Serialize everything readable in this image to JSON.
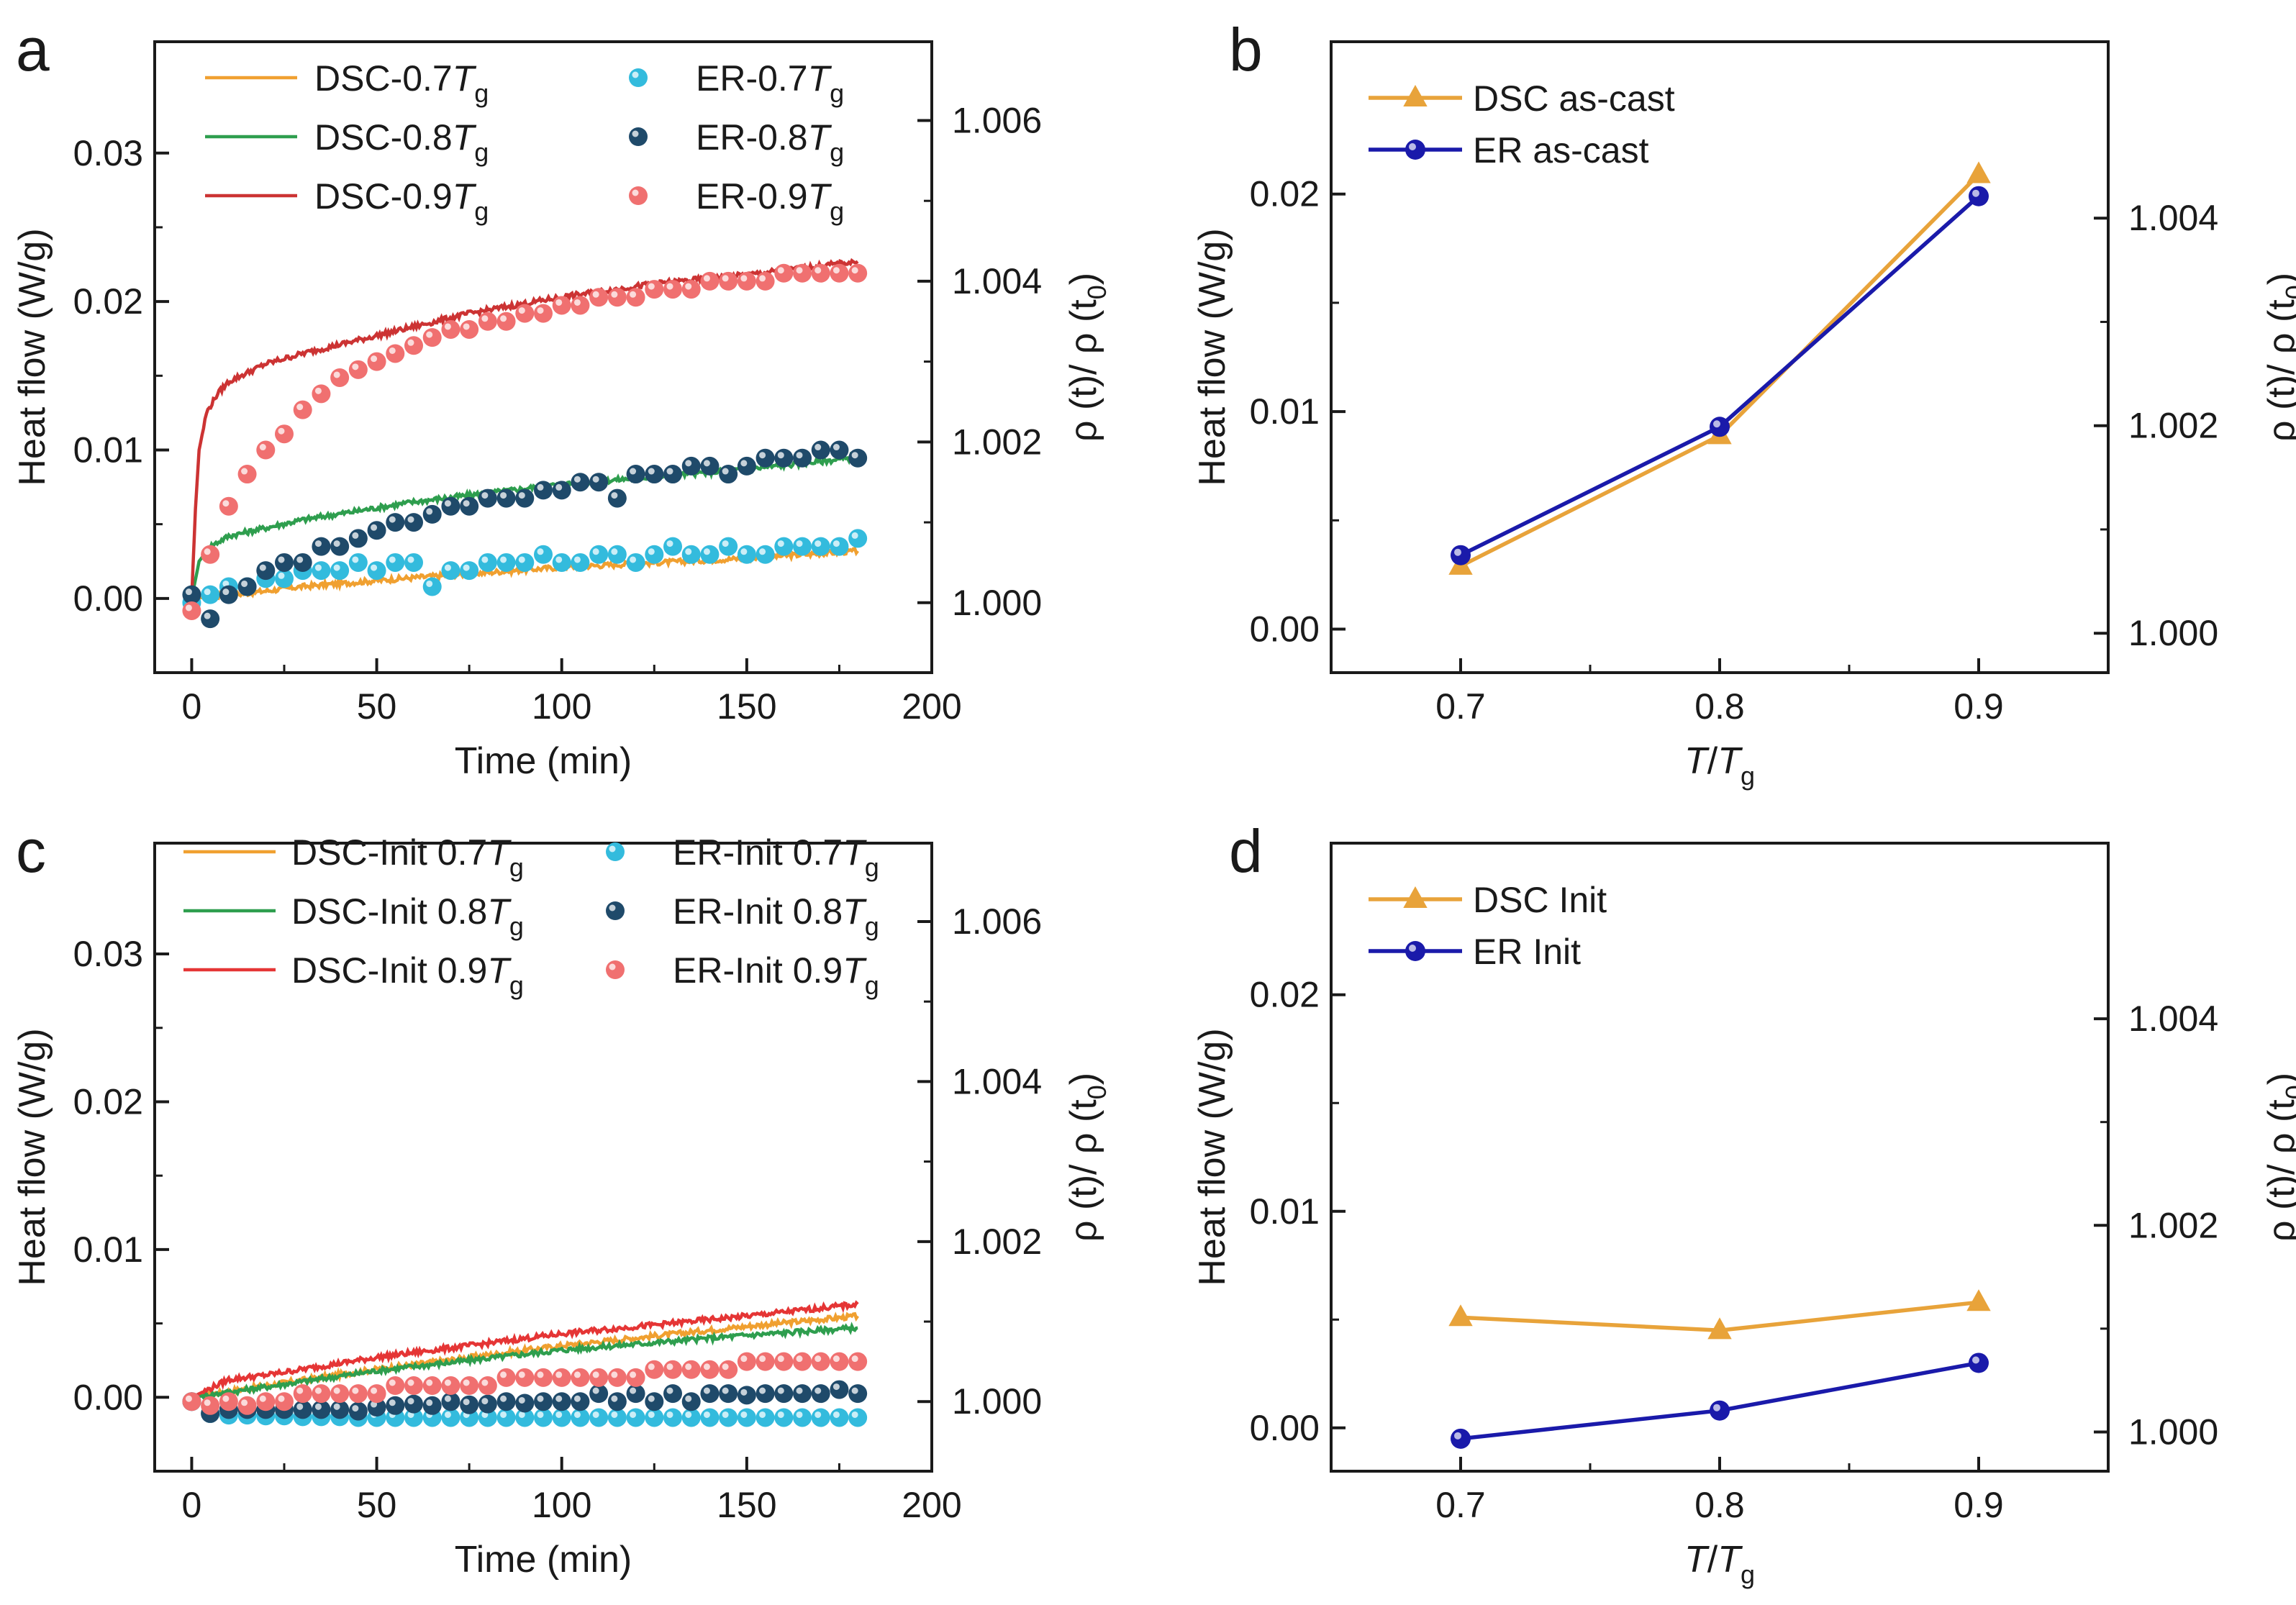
{
  "chart_data": [
    {
      "panel": "a",
      "type": "line+scatter",
      "xlabel": "Time (min)",
      "ylabel": "Heat flow (W/g)",
      "y2label": "ρ (t)/ ρ (t0)",
      "xlim": [
        -10,
        200
      ],
      "ylim": [
        -0.005,
        0.0375
      ],
      "y2lim": [
        0.99913,
        1.00698
      ],
      "xticks": [
        "0",
        "50",
        "100",
        "150",
        "200"
      ],
      "yticks": [
        "0.00",
        "0.01",
        "0.02",
        "0.03"
      ],
      "y2ticks": [
        "1.000",
        "1.002",
        "1.004",
        "1.006"
      ],
      "legend": {
        "lines": [
          {
            "text": "DSC-0.7",
            "color": "#f0a030"
          },
          {
            "text": "DSC-0.8",
            "color": "#2e9e4e"
          },
          {
            "text": "DSC-0.9",
            "color": "#cc3333"
          }
        ],
        "points": [
          {
            "text": "ER-0.7",
            "color": "#33bbdd"
          },
          {
            "text": "ER-0.8",
            "color": "#1f4a6a"
          },
          {
            "text": "ER-0.9",
            "color": "#f07070"
          }
        ],
        "tg_suffix": "T",
        "tg_sub": "g"
      },
      "series": [
        {
          "name": "DSC-0.7Tg",
          "kind": "line",
          "color": "#f0a030",
          "x": [
            0,
            10,
            30,
            60,
            100,
            150,
            180
          ],
          "y": [
            0.0,
            0.0002,
            0.0008,
            0.0014,
            0.0021,
            0.0027,
            0.0032
          ]
        },
        {
          "name": "DSC-0.8Tg",
          "kind": "line",
          "color": "#2e9e4e",
          "x": [
            0,
            2,
            5,
            10,
            30,
            60,
            100,
            150,
            180
          ],
          "y": [
            0.0,
            0.0025,
            0.0035,
            0.0042,
            0.0053,
            0.0065,
            0.0077,
            0.0087,
            0.0095
          ]
        },
        {
          "name": "DSC-0.9Tg",
          "kind": "line",
          "color": "#cc3333",
          "x": [
            0,
            1,
            2,
            4,
            7,
            10,
            20,
            30,
            50,
            75,
            100,
            125,
            150,
            180
          ],
          "y": [
            0.0,
            0.006,
            0.01,
            0.0125,
            0.0138,
            0.0146,
            0.0158,
            0.0165,
            0.0177,
            0.0192,
            0.0203,
            0.0212,
            0.0218,
            0.0227
          ]
        },
        {
          "name": "ER-0.7Tg",
          "kind": "points",
          "color": "#33bbdd",
          "x": [
            0,
            5,
            10,
            15,
            20,
            25,
            30,
            35,
            40,
            45,
            50,
            55,
            60,
            65,
            70,
            75,
            80,
            85,
            90,
            95,
            100,
            105,
            110,
            115,
            120,
            125,
            130,
            135,
            140,
            145,
            150,
            155,
            160,
            165,
            170,
            175,
            180
          ],
          "y": [
            1.0,
            1.0001,
            1.0002,
            1.0002,
            1.0003,
            1.0003,
            1.0004,
            1.0004,
            1.0004,
            1.0005,
            1.0004,
            1.0005,
            1.0005,
            1.0002,
            1.0004,
            1.0004,
            1.0005,
            1.0005,
            1.0005,
            1.0006,
            1.0005,
            1.0005,
            1.0006,
            1.0006,
            1.0005,
            1.0006,
            1.0007,
            1.0006,
            1.0006,
            1.0007,
            1.0006,
            1.0006,
            1.0007,
            1.0007,
            1.0007,
            1.0007,
            1.0008
          ]
        },
        {
          "name": "ER-0.8Tg",
          "kind": "points",
          "color": "#1f4a6a",
          "x": [
            0,
            5,
            10,
            15,
            20,
            25,
            30,
            35,
            40,
            45,
            50,
            55,
            60,
            65,
            70,
            75,
            80,
            85,
            90,
            95,
            100,
            105,
            110,
            115,
            120,
            125,
            130,
            135,
            140,
            145,
            150,
            155,
            160,
            165,
            170,
            175,
            180
          ],
          "y": [
            1.0001,
            0.9998,
            1.0001,
            1.0002,
            1.0004,
            1.0005,
            1.0005,
            1.0007,
            1.0007,
            1.0008,
            1.0009,
            1.001,
            1.001,
            1.0011,
            1.0012,
            1.0012,
            1.0013,
            1.0013,
            1.0013,
            1.0014,
            1.0014,
            1.0015,
            1.0015,
            1.0013,
            1.0016,
            1.0016,
            1.0016,
            1.0017,
            1.0017,
            1.0016,
            1.0017,
            1.0018,
            1.0018,
            1.0018,
            1.0019,
            1.0019,
            1.0018
          ]
        },
        {
          "name": "ER-0.9Tg",
          "kind": "points",
          "color": "#f07070",
          "x": [
            0,
            5,
            10,
            15,
            20,
            25,
            30,
            35,
            40,
            45,
            50,
            55,
            60,
            65,
            70,
            75,
            80,
            85,
            90,
            95,
            100,
            105,
            110,
            115,
            120,
            125,
            130,
            135,
            140,
            145,
            150,
            155,
            160,
            165,
            170,
            175,
            180
          ],
          "y": [
            0.9999,
            1.0006,
            1.0012,
            1.0016,
            1.0019,
            1.0021,
            1.0024,
            1.0026,
            1.0028,
            1.0029,
            1.003,
            1.0031,
            1.0032,
            1.0033,
            1.0034,
            1.0034,
            1.0035,
            1.0035,
            1.0036,
            1.0036,
            1.0037,
            1.0037,
            1.0038,
            1.0038,
            1.0038,
            1.0039,
            1.0039,
            1.0039,
            1.004,
            1.004,
            1.004,
            1.004,
            1.0041,
            1.0041,
            1.0041,
            1.0041,
            1.0041
          ]
        }
      ]
    },
    {
      "panel": "b",
      "type": "line",
      "xlabel": "T/T",
      "xlabel_sub": "g",
      "ylabel": "Heat flow (W/g)",
      "y2label": "ρ (t)/ ρ (t0)",
      "xlim": [
        0.65,
        0.95
      ],
      "ylim": [
        -0.002,
        0.027
      ],
      "y2lim": [
        0.99962,
        1.0057
      ],
      "xticks": [
        "0.7",
        "0.8",
        "0.9"
      ],
      "yticks": [
        "0.00",
        "0.01",
        "0.02"
      ],
      "y2ticks": [
        "1.000",
        "1.002",
        "1.004"
      ],
      "legend": [
        {
          "text": "DSC as-cast",
          "color": "#e8a33a",
          "marker": "triangle"
        },
        {
          "text": "ER as-cast",
          "color": "#1a1aaa",
          "marker": "circle"
        }
      ],
      "series": [
        {
          "name": "DSC as-cast",
          "color": "#e8a33a",
          "marker": "triangle",
          "x": [
            0.7,
            0.8,
            0.9
          ],
          "y": [
            0.0029,
            0.0089,
            0.0209
          ]
        },
        {
          "name": "ER as-cast",
          "color": "#1a1aaa",
          "marker": "circle",
          "x": [
            0.7,
            0.8,
            0.9
          ],
          "y": [
            0.0034,
            0.0093,
            0.0199
          ]
        }
      ]
    },
    {
      "panel": "c",
      "type": "line+scatter",
      "xlabel": "Time (min)",
      "ylabel": "Heat flow (W/g)",
      "y2label": "ρ (t)/ ρ (t0)",
      "xlim": [
        -10,
        200
      ],
      "ylim": [
        -0.005,
        0.0375
      ],
      "y2lim": [
        0.99913,
        1.00698
      ],
      "xticks": [
        "0",
        "50",
        "100",
        "150",
        "200"
      ],
      "yticks": [
        "0.00",
        "0.01",
        "0.02",
        "0.03"
      ],
      "y2ticks": [
        "1.000",
        "1.002",
        "1.004",
        "1.006"
      ],
      "legend": {
        "lines": [
          {
            "text": "DSC-Init 0.7",
            "color": "#f0a030"
          },
          {
            "text": "DSC-Init 0.8",
            "color": "#2e9e4e"
          },
          {
            "text": "DSC-Init 0.9",
            "color": "#e53535"
          }
        ],
        "points": [
          {
            "text": "ER-Init 0.7",
            "color": "#33bbdd"
          },
          {
            "text": "ER-Init 0.8",
            "color": "#1f4a6a"
          },
          {
            "text": "ER-Init 0.9",
            "color": "#f07070"
          }
        ],
        "tg_suffix": "T",
        "tg_sub": "g"
      },
      "series": [
        {
          "name": "DSC-Init 0.7Tg",
          "kind": "line",
          "color": "#f0a030",
          "x": [
            0,
            20,
            50,
            100,
            150,
            180
          ],
          "y": [
            0.0,
            0.0008,
            0.0019,
            0.0035,
            0.0048,
            0.0055
          ]
        },
        {
          "name": "DSC-Init 0.8Tg",
          "kind": "line",
          "color": "#2e9e4e",
          "x": [
            0,
            20,
            50,
            100,
            150,
            180
          ],
          "y": [
            0.0,
            0.0007,
            0.0018,
            0.0032,
            0.0042,
            0.0047
          ]
        },
        {
          "name": "DSC-Init 0.9Tg",
          "kind": "line",
          "color": "#e53535",
          "x": [
            0,
            10,
            20,
            50,
            100,
            150,
            180
          ],
          "y": [
            0.0,
            0.0012,
            0.0015,
            0.0027,
            0.0043,
            0.0055,
            0.0063
          ]
        },
        {
          "name": "ER-Init 0.7Tg",
          "kind": "points",
          "color": "#33bbdd",
          "x": [
            0,
            5,
            10,
            15,
            20,
            25,
            30,
            35,
            40,
            45,
            50,
            55,
            60,
            65,
            70,
            75,
            80,
            85,
            90,
            95,
            100,
            105,
            110,
            115,
            120,
            125,
            130,
            135,
            140,
            145,
            150,
            155,
            160,
            165,
            170,
            175,
            180
          ],
          "y": [
            1.0,
            0.99985,
            0.99983,
            0.99983,
            0.99982,
            0.99982,
            0.99981,
            0.99981,
            0.99981,
            0.9998,
            0.9998,
            0.9998,
            0.9998,
            0.9998,
            0.9998,
            0.9998,
            0.9998,
            0.9998,
            0.9998,
            0.9998,
            0.9998,
            0.9998,
            0.9998,
            0.9998,
            0.9998,
            0.9998,
            0.9998,
            0.9998,
            0.9998,
            0.9998,
            0.9998,
            0.9998,
            0.9998,
            0.9998,
            0.9998,
            0.9998,
            0.9998
          ]
        },
        {
          "name": "ER-Init 0.8Tg",
          "kind": "points",
          "color": "#1f4a6a",
          "x": [
            0,
            5,
            10,
            15,
            20,
            25,
            30,
            35,
            40,
            45,
            50,
            55,
            60,
            65,
            70,
            75,
            80,
            85,
            90,
            95,
            100,
            105,
            110,
            115,
            120,
            125,
            130,
            135,
            140,
            145,
            150,
            155,
            160,
            165,
            170,
            175,
            180
          ],
          "y": [
            1.0,
            0.99985,
            0.9999,
            0.9999,
            0.9999,
            0.9999,
            0.9999,
            0.9999,
            0.9999,
            0.99988,
            0.99993,
            0.99995,
            0.99997,
            0.99995,
            1.0,
            0.99996,
            0.99997,
            1.0,
            0.99998,
            1.0,
            1.0,
            1.0,
            1.0001,
            1.0,
            1.0001,
            1.0,
            1.0001,
            1.0,
            1.0001,
            1.0001,
            1.00008,
            1.0001,
            1.0001,
            1.0001,
            1.0001,
            1.00015,
            1.0001
          ]
        },
        {
          "name": "ER-Init 0.9Tg",
          "kind": "points",
          "color": "#f07070",
          "x": [
            0,
            5,
            10,
            15,
            20,
            25,
            30,
            35,
            40,
            45,
            50,
            55,
            60,
            65,
            70,
            75,
            80,
            85,
            90,
            95,
            100,
            105,
            110,
            115,
            120,
            125,
            130,
            135,
            140,
            145,
            150,
            155,
            160,
            165,
            170,
            175,
            180
          ],
          "y": [
            1.0,
            0.99995,
            1.0,
            0.99995,
            1.0,
            1.0,
            1.0001,
            1.0001,
            1.0001,
            1.0001,
            1.0001,
            1.0002,
            1.0002,
            1.0002,
            1.0002,
            1.0002,
            1.0002,
            1.0003,
            1.0003,
            1.0003,
            1.0003,
            1.0003,
            1.0003,
            1.0003,
            1.0003,
            1.0004,
            1.0004,
            1.0004,
            1.0004,
            1.0004,
            1.0005,
            1.0005,
            1.0005,
            1.0005,
            1.0005,
            1.0005,
            1.0005
          ]
        }
      ]
    },
    {
      "panel": "d",
      "type": "line",
      "xlabel": "T/T",
      "xlabel_sub": "g",
      "ylabel": "Heat flow (W/g)",
      "y2label": "ρ (t)/ ρ (t0)",
      "xlim": [
        0.65,
        0.95
      ],
      "ylim": [
        -0.002,
        0.027
      ],
      "y2lim": [
        0.99962,
        1.0057
      ],
      "xticks": [
        "0.7",
        "0.8",
        "0.9"
      ],
      "yticks": [
        "0.00",
        "0.01",
        "0.02"
      ],
      "y2ticks": [
        "1.000",
        "1.002",
        "1.004"
      ],
      "legend": [
        {
          "text": "DSC Init",
          "color": "#e8a33a",
          "marker": "triangle"
        },
        {
          "text": "ER Init",
          "color": "#1a1aaa",
          "marker": "circle"
        }
      ],
      "series": [
        {
          "name": "DSC Init",
          "color": "#e8a33a",
          "marker": "triangle",
          "x": [
            0.7,
            0.8,
            0.9
          ],
          "y": [
            0.0051,
            0.0045,
            0.0058
          ]
        },
        {
          "name": "ER Init",
          "color": "#1a1aaa",
          "marker": "circle",
          "x": [
            0.7,
            0.8,
            0.9
          ],
          "y": [
            -0.0005,
            0.0008,
            0.003
          ]
        }
      ]
    }
  ]
}
